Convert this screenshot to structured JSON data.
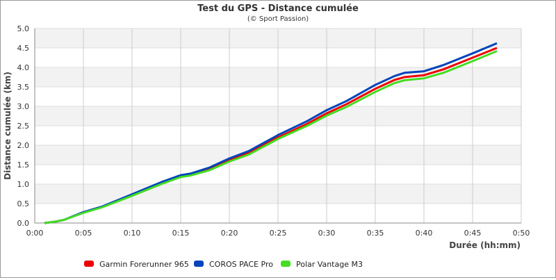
{
  "chart_data": {
    "type": "line",
    "title": "Test du GPS - Distance cumulée",
    "subtitle": "(© Sport Passion)",
    "xlabel": "Durée (hh:mm)",
    "ylabel": "Distance cumulée (km)",
    "xlim": [
      0,
      50
    ],
    "ylim": [
      0,
      5
    ],
    "x_ticks": [
      "0:00",
      "0:05",
      "0:10",
      "0:15",
      "0:20",
      "0:25",
      "0:30",
      "0:35",
      "0:40",
      "0:45",
      "0:50"
    ],
    "y_ticks": [
      "0.0",
      "0.5",
      "1.0",
      "1.5",
      "2.0",
      "2.5",
      "3.0",
      "3.5",
      "4.0",
      "4.5",
      "5.0"
    ],
    "grid": true,
    "legend_position": "bottom",
    "x": [
      1,
      2,
      3,
      5,
      7,
      10,
      13,
      15,
      16,
      18,
      20,
      22,
      25,
      28,
      30,
      32,
      35,
      37,
      38,
      40,
      42,
      45,
      47.5
    ],
    "series": [
      {
        "name": "Garmin Forerunner 965",
        "color": "#ee0000",
        "values": [
          0,
          0.03,
          0.08,
          0.27,
          0.42,
          0.72,
          1.02,
          1.2,
          1.25,
          1.4,
          1.62,
          1.8,
          2.2,
          2.55,
          2.82,
          3.05,
          3.45,
          3.68,
          3.75,
          3.8,
          3.95,
          4.25,
          4.5
        ]
      },
      {
        "name": "COROS PACE Pro",
        "color": "#0044bb",
        "values": [
          0,
          0.03,
          0.08,
          0.28,
          0.43,
          0.74,
          1.05,
          1.23,
          1.27,
          1.43,
          1.66,
          1.85,
          2.26,
          2.62,
          2.9,
          3.13,
          3.55,
          3.78,
          3.86,
          3.9,
          4.06,
          4.36,
          4.62
        ]
      },
      {
        "name": "Polar Vantage M3",
        "color": "#44dd22",
        "values": [
          0,
          0.03,
          0.08,
          0.26,
          0.41,
          0.7,
          1.0,
          1.18,
          1.22,
          1.36,
          1.58,
          1.76,
          2.16,
          2.5,
          2.76,
          2.98,
          3.37,
          3.6,
          3.67,
          3.72,
          3.86,
          4.16,
          4.42
        ]
      }
    ]
  }
}
